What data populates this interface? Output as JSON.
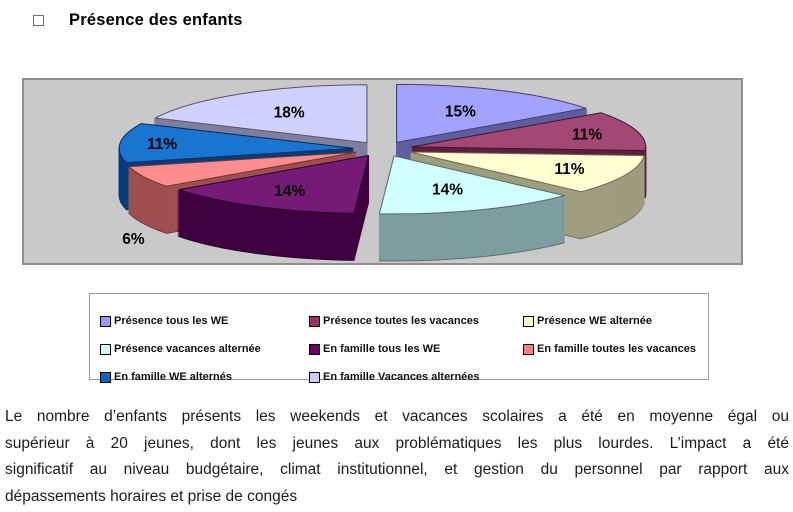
{
  "title": {
    "text": "Présence des enfants"
  },
  "chart_data": {
    "type": "pie",
    "style": "3d-exploded",
    "start_angle_deg": 0,
    "direction": "clockwise",
    "labels": [
      "Présence tous les WE",
      "Présence toutes les vacances",
      "Présence WE alternée",
      "Présence vacances alternée",
      "En famille tous les WE",
      "En famille toutes les vacances",
      "En famille WE alternés",
      "En famille Vacances alternées"
    ],
    "values": [
      15,
      11,
      11,
      14,
      14,
      6,
      11,
      18
    ],
    "unit": "%",
    "value_label_format": "percent",
    "colors": [
      "#9999FF",
      "#993366",
      "#FFFFCC",
      "#CCFFFF",
      "#660066",
      "#FF8080",
      "#0066CC",
      "#CCCCFF"
    ],
    "plot_background": "#C9C9C9",
    "plot_border": "#8F8F8F",
    "legend_position": "below"
  },
  "caption": {
    "lines": [
      "Le nombre d’enfants présents les weekends et vacances scolaires a été en moyenne égal ou",
      "supérieur à 20 jeunes, dont les jeunes aux problématiques les plus lourdes. L’impact a été",
      "significatif au niveau budgétaire, climat institutionnel, et gestion du personnel par rapport aux",
      "dépassements horaires et prise de congés"
    ]
  }
}
